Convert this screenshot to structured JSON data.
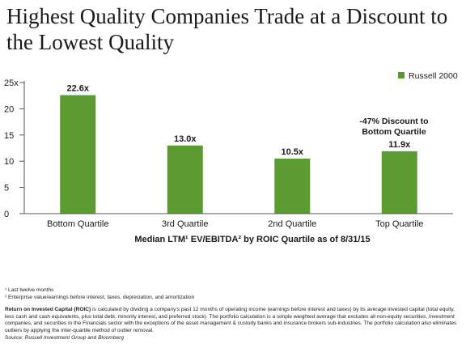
{
  "title": "Highest Quality Companies Trade at a Discount to the Lowest Quality",
  "colors": {
    "bar": "#5c9a32",
    "axis": "#555555",
    "text": "#1a1a1a"
  },
  "chart_data": {
    "type": "bar",
    "categories": [
      "Bottom Quartile",
      "3rd Quartile",
      "2nd Quartile",
      "Top Quartile"
    ],
    "series": [
      {
        "name": "Russell 2000",
        "values": [
          22.6,
          13.0,
          10.5,
          11.9
        ]
      }
    ],
    "data_labels": [
      "22.6x",
      "13.0x",
      "10.5x",
      "11.9x"
    ],
    "ylim": [
      0,
      25
    ],
    "yticks": [
      0,
      5,
      10,
      15,
      20,
      25
    ],
    "ytick_labels": [
      "0",
      "5",
      "10",
      "15",
      "20",
      "25x"
    ],
    "xlabel": "Median LTM¹ EV/EBITDA² by ROIC Quartile as of 8/31/15",
    "legend": {
      "position": "top-right",
      "label": "Russell 2000"
    },
    "annotation": {
      "line1": "-47% Discount to",
      "line2": "Bottom Quartile"
    },
    "grid": false
  },
  "footnotes": {
    "note1": "¹ Last twelve months",
    "note2": "² Enterprise value/earnings before interest, taxes, depreciation, and amortization",
    "roic_term": "Return on Invested Capital (ROIC)",
    "roic_text": " is calculated by dividing a company's past 12 months of operating income (earnings before interest and taxes) by its average invested capital (total equity, less cash and cash equivalents, plus total debt, minority interest, and preferred stock). The portfolio calculation is a simple weighted average that excludes all non-equity securities, investment companies, and securities in the Financials sector with the exceptions of the asset management & custody banks and insurance brokers sub-industries. The portfolio calculation also eliminates outliers by applying the inter-quartile method of outlier removal.",
    "source_label": "Source: ",
    "source_text": "Russell Investment Group",
    "source_and": " and ",
    "source_text2": "Bloomberg"
  }
}
